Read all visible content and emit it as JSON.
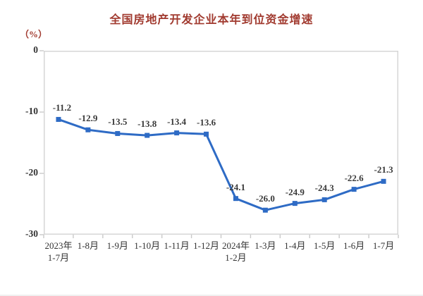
{
  "chart_data": {
    "type": "line",
    "title": "全国房地产开发企业本年到位资金增速",
    "unit_label": "（%）",
    "categories": [
      "2023年\n1-7月",
      "1-8月",
      "1-9月",
      "1-10月",
      "1-11月",
      "1-12月",
      "2024年\n1-2月",
      "1-3月",
      "1-4月",
      "1-5月",
      "1-6月",
      "1-7月"
    ],
    "values": [
      -11.2,
      -12.9,
      -13.5,
      -13.8,
      -13.4,
      -13.6,
      -24.1,
      -26.0,
      -24.9,
      -24.3,
      -22.6,
      -21.3
    ],
    "point_labels": [
      "-11.2",
      "-12.9",
      "-13.5",
      "-13.8",
      "-13.4",
      "-13.6",
      "-24.1",
      "-26.0",
      "-24.9",
      "-24.3",
      "-22.6",
      "-21.3"
    ],
    "yticks": [
      0,
      -10,
      -20,
      -30
    ],
    "ylim": [
      -30,
      0
    ],
    "grid": "off",
    "legend": "none",
    "colors": {
      "line": "#2E6BC5",
      "marker": "#2E6BC5",
      "title": "#A13A2F",
      "unit": "#A13A2F",
      "plot_border": "#D6D6D6",
      "tick": "#C9C9C9",
      "axis_text": "#333333",
      "data_label": "#3A3A3A",
      "background": "#FFFFFF"
    }
  }
}
